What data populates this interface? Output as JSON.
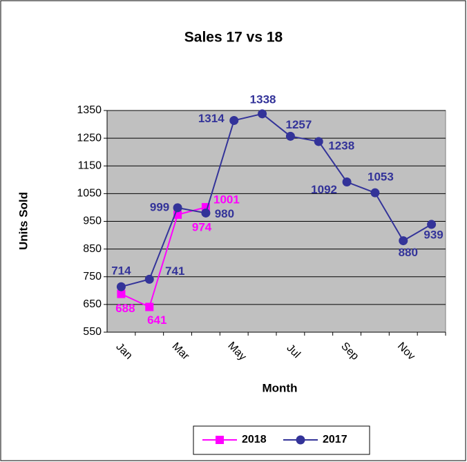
{
  "chart_data": {
    "type": "line",
    "title": "Sales 17 vs 18",
    "x_label": "Month",
    "y_label": "Units Sold",
    "categories": [
      "Jan",
      null,
      "Mar",
      null,
      "May",
      null,
      "Jul",
      null,
      "Sep",
      null,
      "Nov",
      null
    ],
    "series": [
      {
        "name": "2018",
        "color": "#ff00ff",
        "marker": "square",
        "values": [
          688,
          641,
          974,
          1001,
          null,
          null,
          null,
          null,
          null,
          null,
          null,
          null
        ]
      },
      {
        "name": "2017",
        "color": "#333399",
        "marker": "circle",
        "values": [
          714,
          741,
          999,
          980,
          1314,
          1338,
          1257,
          1238,
          1092,
          1053,
          880,
          939
        ]
      }
    ],
    "ylim": [
      550,
      1350
    ],
    "yticks": [
      550,
      650,
      750,
      850,
      950,
      1050,
      1150,
      1250,
      1350
    ],
    "grid": true,
    "legend": "bottom"
  }
}
